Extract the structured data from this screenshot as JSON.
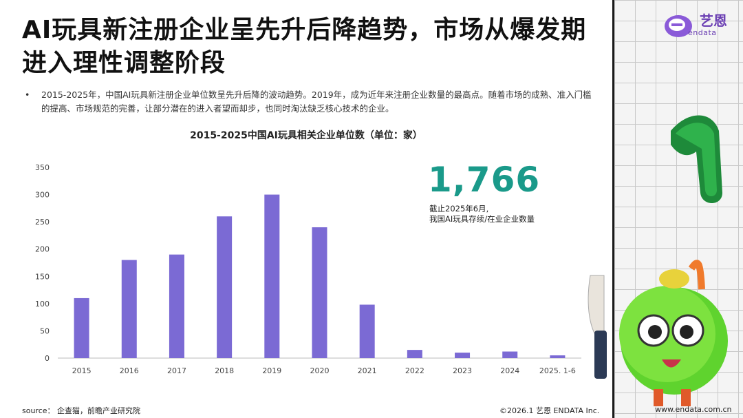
{
  "title": "AI玩具新注册企业呈先升后降趋势，市场从爆发期进入理性调整阶段",
  "bullet": {
    "marker": "•",
    "text": "2015-2025年，中国AI玩具新注册企业单位数呈先升后降的波动趋势。2019年，成为近年来注册企业数量的最高点。随着市场的成熟、准入门槛的提高、市场规范的完善，让部分潜在的进入者望而却步，也同时淘汰缺乏核心技术的企业。"
  },
  "stat": {
    "value": "1,766",
    "note_line1": "截止2025年6月,",
    "note_line2": "我国AI玩具存续/在业企业数量"
  },
  "logo": {
    "text": "艺恩",
    "sub": "endata"
  },
  "footer": {
    "source": "source： 企查猫，前瞻产业研究院",
    "copyright": "©2026.1  艺恩 ENDATA Inc.",
    "website": "www.endata.com.cn"
  },
  "colors": {
    "bar": "#7b6ad4",
    "accent": "#1a9a8a",
    "brand": "#6b3fb3"
  },
  "chart_data": {
    "type": "bar",
    "title": "2015-2025中国AI玩具相关企业单位数（单位：家）",
    "categories": [
      "2015",
      "2016",
      "2017",
      "2018",
      "2019",
      "2020",
      "2021",
      "2022",
      "2023",
      "2024",
      "2025. 1-6"
    ],
    "values": [
      110,
      180,
      190,
      260,
      300,
      240,
      98,
      15,
      10,
      12,
      5
    ],
    "ylim": [
      0,
      350
    ],
    "yticks": [
      0,
      50,
      100,
      150,
      200,
      250,
      300,
      350
    ],
    "xlabel": "",
    "ylabel": "",
    "grid": false
  }
}
